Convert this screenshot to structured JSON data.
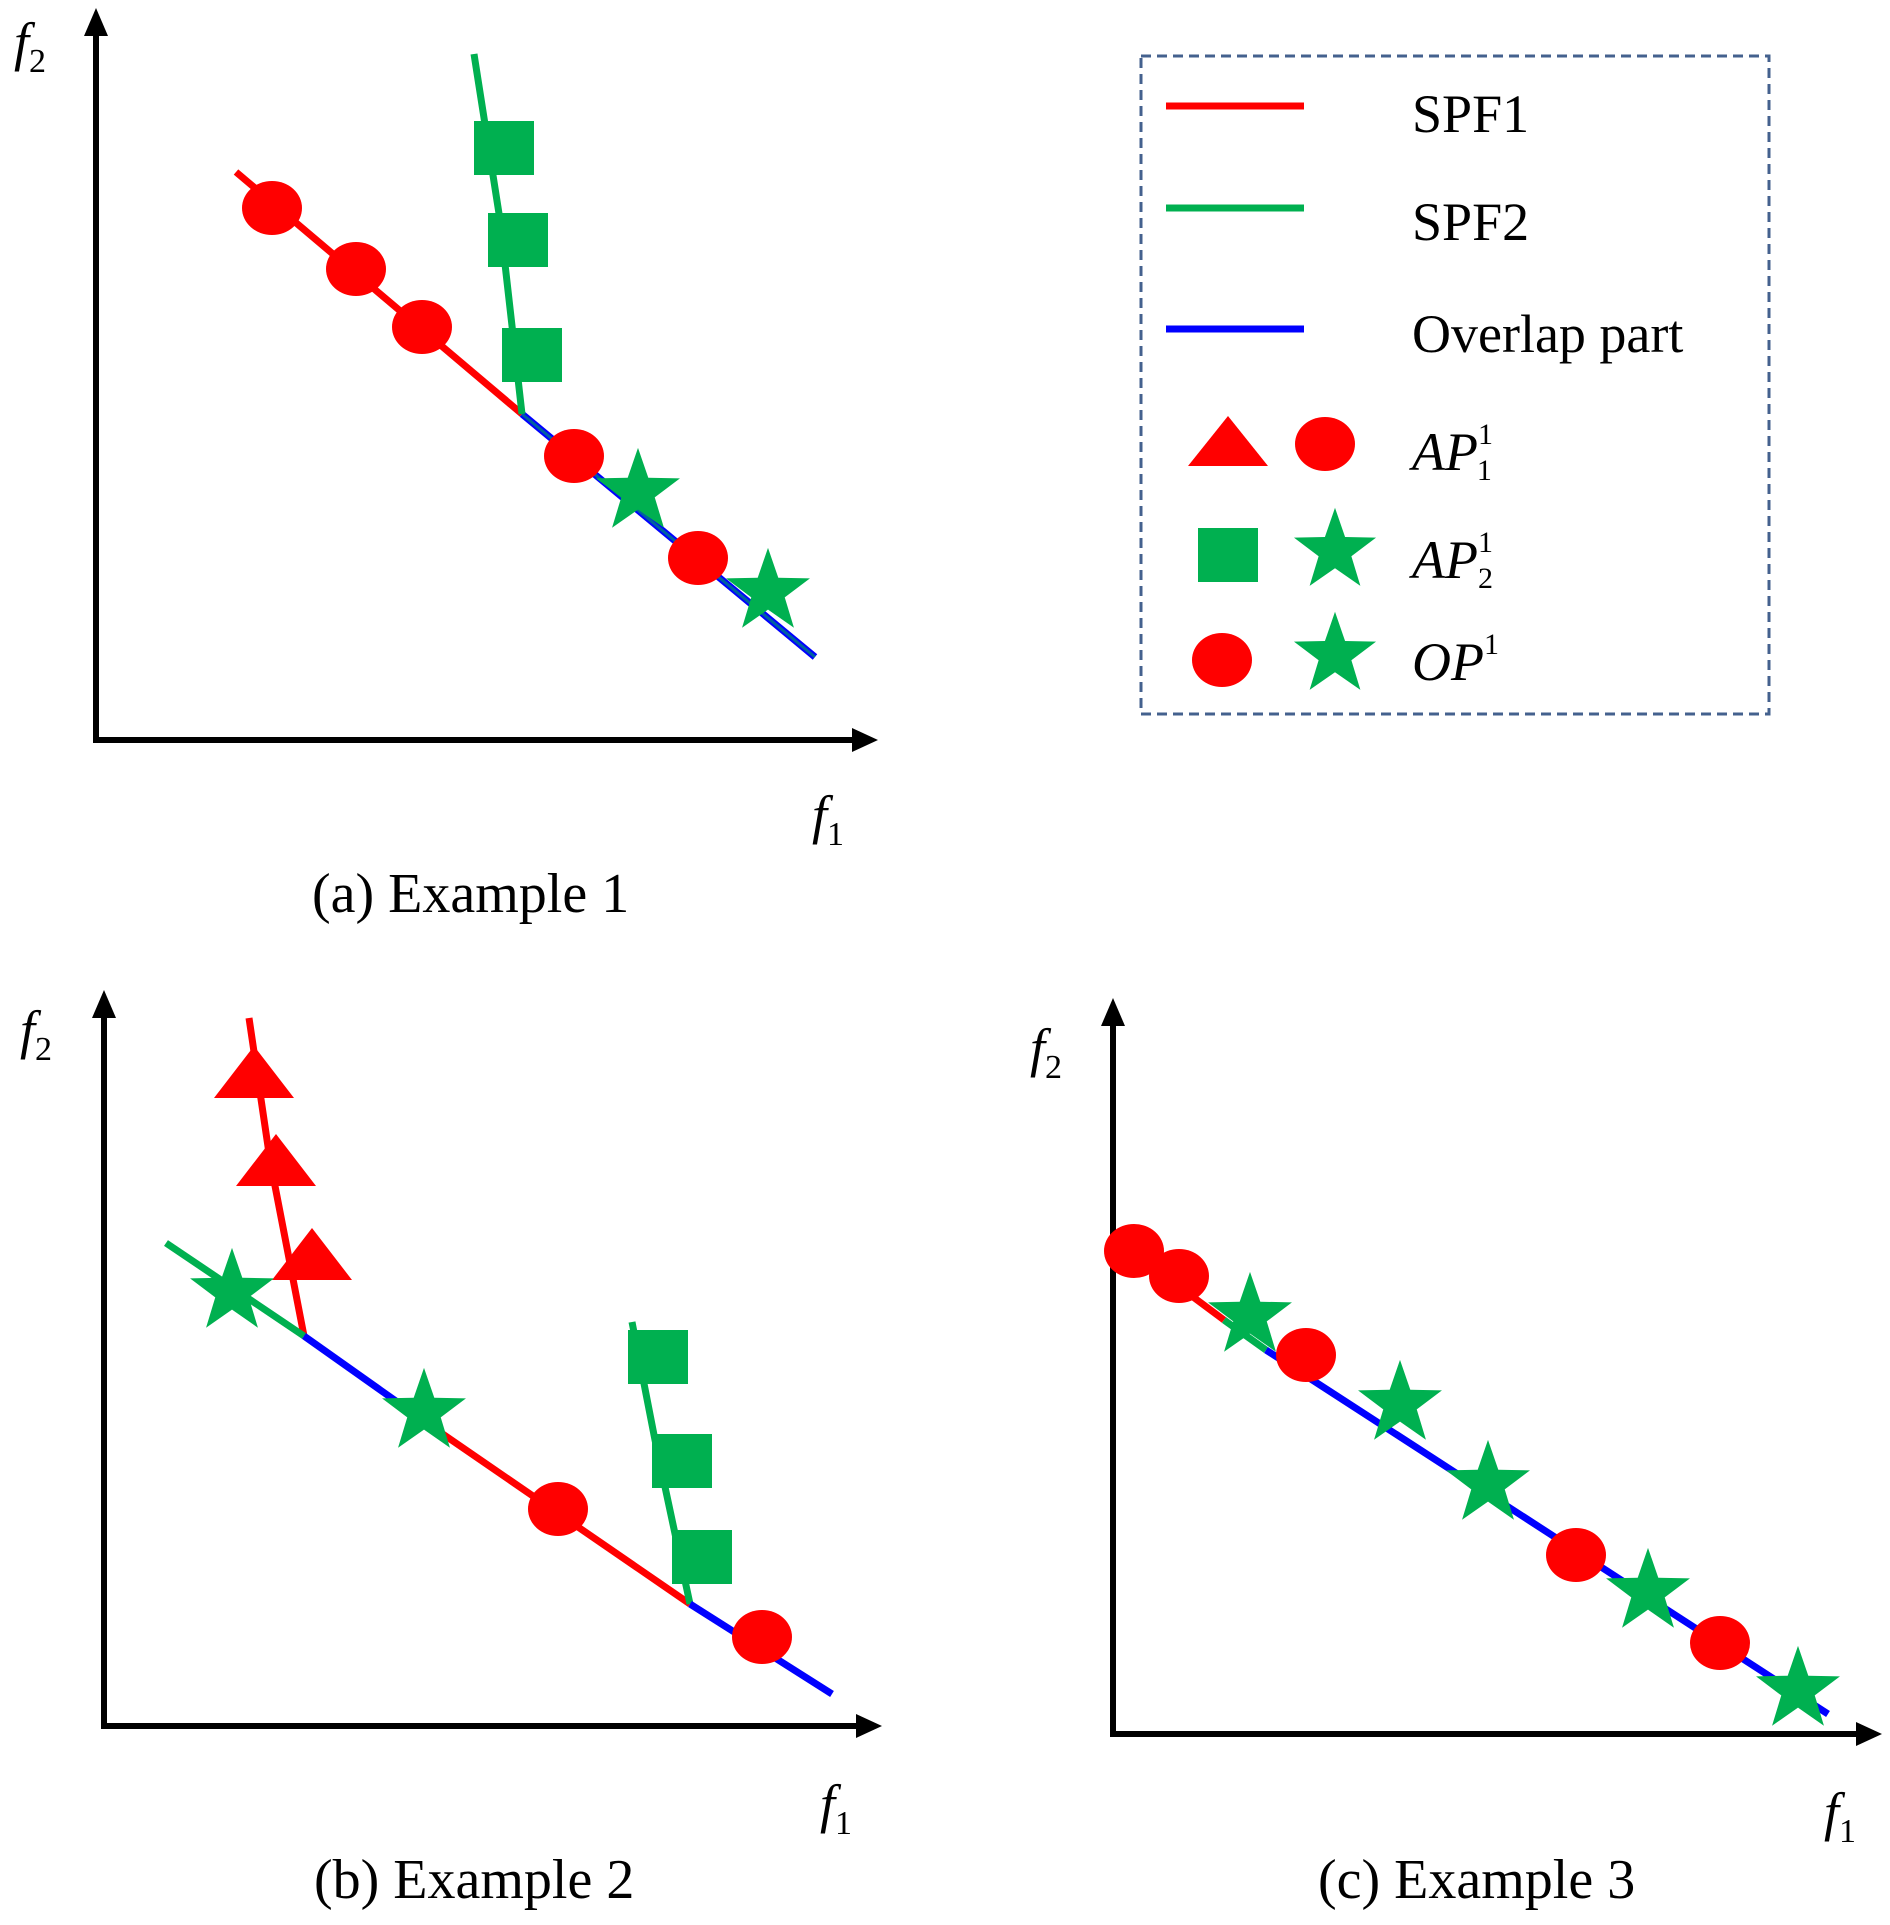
{
  "legend": {
    "items": [
      {
        "label": "SPF1",
        "color": "#ff0000"
      },
      {
        "label": "SPF2",
        "color": "#00b050"
      },
      {
        "label": "Overlap part",
        "color": "#0000ff"
      }
    ],
    "symbol_rows": [
      {
        "base": "AP",
        "sup": "1",
        "sub": "1",
        "markers": [
          "triangle",
          "circle"
        ],
        "colors": [
          "#ff0000",
          "#ff0000"
        ]
      },
      {
        "base": "AP",
        "sup": "1",
        "sub": "2",
        "markers": [
          "square",
          "star"
        ],
        "colors": [
          "#00b050",
          "#00b050"
        ]
      },
      {
        "base": "OP",
        "sup": "1",
        "sub": "",
        "markers": [
          "circle",
          "star"
        ],
        "colors": [
          "#ff0000",
          "#00b050"
        ]
      }
    ]
  },
  "axes": {
    "x_label": "f",
    "x_sub": "1",
    "y_label": "f",
    "y_sub": "2"
  },
  "panels": [
    {
      "id": "a",
      "caption": "(a) Example 1"
    },
    {
      "id": "b",
      "caption": "(b) Example 2"
    },
    {
      "id": "c",
      "caption": "(c) Example 3"
    }
  ],
  "colors": {
    "spf1": "#ff0000",
    "spf2": "#00b050",
    "overlap": "#0000ff",
    "axis": "#000000",
    "legend_border": "#44618e"
  }
}
